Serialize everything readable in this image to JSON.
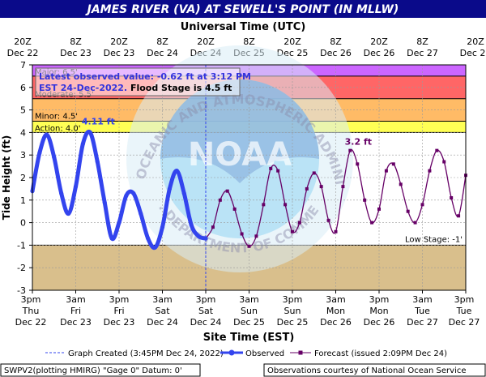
{
  "chart_data": {
    "type": "line",
    "title": "JAMES RIVER (VA) AT SEWELL'S POINT (IN MLLW)",
    "top_axis_label": "Universal Time (UTC)",
    "xlabel": "Site Time (EST)",
    "ylabel": "Tide Height (ft)",
    "ylim": [
      -3,
      7
    ],
    "y_ticks": [
      7,
      6,
      5,
      4,
      3,
      2,
      1,
      0,
      -1,
      -2,
      -3
    ],
    "x_range_hours": [
      0,
      120
    ],
    "x_tick_hours": [
      0,
      12,
      24,
      36,
      48,
      60,
      72,
      84,
      96,
      108,
      120
    ],
    "bottom_ticks": [
      {
        "time": "3pm",
        "day": "Thu",
        "date": "Dec 22"
      },
      {
        "time": "3am",
        "day": "Fri",
        "date": "Dec 23"
      },
      {
        "time": "3pm",
        "day": "Fri",
        "date": "Dec 23"
      },
      {
        "time": "3am",
        "day": "Sat",
        "date": "Dec 24"
      },
      {
        "time": "3pm",
        "day": "Sat",
        "date": "Dec 24"
      },
      {
        "time": "3am",
        "day": "Sun",
        "date": "Dec 25"
      },
      {
        "time": "3pm",
        "day": "Sun",
        "date": "Dec 25"
      },
      {
        "time": "3am",
        "day": "Mon",
        "date": "Dec 26"
      },
      {
        "time": "3pm",
        "day": "Mon",
        "date": "Dec 26"
      },
      {
        "time": "3am",
        "day": "Tue",
        "date": "Dec 27"
      },
      {
        "time": "3pm",
        "day": "Tue",
        "date": "Dec 27"
      }
    ],
    "top_ticks": [
      {
        "time": "20Z",
        "date": "Dec 22"
      },
      {
        "time": "8Z",
        "date": "Dec 23"
      },
      {
        "time": "20Z",
        "date": "Dec 23"
      },
      {
        "time": "8Z",
        "date": "Dec 24"
      },
      {
        "time": "20Z",
        "date": "Dec 24"
      },
      {
        "time": "8Z",
        "date": "Dec 25"
      },
      {
        "time": "20Z",
        "date": "Dec 25"
      },
      {
        "time": "8Z",
        "date": "Dec 26"
      },
      {
        "time": "20Z",
        "date": "Dec 26"
      },
      {
        "time": "8Z",
        "date": "Dec 27"
      },
      {
        "time": "20Z",
        "date": "Dec 27"
      }
    ],
    "flood_categories": [
      {
        "name": "Major",
        "label": "Major: 6.5'",
        "min": 6.5,
        "max": 7,
        "color": "#cc66ff"
      },
      {
        "name": "Moderate",
        "label": "Moderate: 5.5'",
        "min": 5.5,
        "max": 6.5,
        "color": "#ff6666"
      },
      {
        "name": "Flood",
        "label": "",
        "min": 4.5,
        "max": 5.5,
        "color": "#ffbb66"
      },
      {
        "name": "Minor",
        "label": "Minor: 4.5'",
        "min": 4.0,
        "max": 4.5,
        "color": "#ffff55"
      },
      {
        "name": "Action",
        "label": "Action: 4.0'",
        "min": 4.0,
        "max": 4.0,
        "color": "#ffff55"
      },
      {
        "name": "Low",
        "label": "Low Stage: -1'",
        "min": -3,
        "max": -1,
        "color": "#d9bf8c"
      }
    ],
    "observed": {
      "name": "Observed",
      "color": "#3344ee",
      "x_hours": [
        0,
        2,
        4,
        6,
        8,
        10,
        12,
        14,
        16,
        18,
        20,
        22,
        24,
        26,
        28,
        30,
        32,
        34,
        36,
        38,
        40,
        42,
        44,
        46,
        48
      ],
      "values": [
        1.4,
        3.1,
        3.9,
        2.9,
        1.3,
        0.4,
        1.6,
        3.5,
        4.0,
        2.7,
        0.9,
        -0.7,
        0.0,
        1.2,
        1.3,
        0.4,
        -0.7,
        -1.1,
        -0.2,
        1.5,
        2.3,
        1.3,
        -0.1,
        -0.6,
        -0.7
      ]
    },
    "forecast": {
      "name": "Forecast (issued 2:09PM Dec 24)",
      "color": "#660066",
      "x_hours": [
        48,
        50,
        52,
        54,
        56,
        58,
        60,
        62,
        64,
        66,
        68,
        70,
        72,
        74,
        76,
        78,
        80,
        82,
        84,
        86,
        88,
        90,
        92,
        94,
        96,
        98,
        100,
        102,
        104,
        106,
        108,
        110,
        112,
        114,
        116,
        118,
        120
      ],
      "values": [
        -0.7,
        -0.2,
        1.0,
        1.4,
        0.6,
        -0.5,
        -1.05,
        -0.6,
        0.8,
        2.4,
        2.3,
        0.8,
        -0.4,
        0.0,
        1.5,
        2.2,
        1.6,
        0.1,
        -0.4,
        1.6,
        3.2,
        2.6,
        1.0,
        0.0,
        0.6,
        2.3,
        2.6,
        1.7,
        0.5,
        0.0,
        0.8,
        2.3,
        3.2,
        2.7,
        1.1,
        0.3,
        2.1
      ]
    },
    "annotations": [
      {
        "text": "4.11 ft",
        "color": "#3344ee",
        "x_hours": 16,
        "y": 4.11
      },
      {
        "text": "3.2 ft",
        "color": "#660066",
        "x_hours": 88,
        "y": 3.2
      }
    ],
    "info_box": {
      "line1": "Latest observed value: -0.62  ft at 3:12 PM",
      "line2a": "EST 24-Dec-2022.",
      "line2b": " Flood Stage is 4.5 ft"
    },
    "graph_created_x_hours": 48,
    "grid": true,
    "legend": {
      "created": "Graph Created (3:45PM Dec 24, 2022)",
      "observed": "Observed",
      "forecast": "Forecast (issued 2:09PM Dec 24)"
    },
    "footer_left": "SWPV2(plotting HMIRG) \"Gage 0\" Datum: 0'",
    "footer_right": "Observations courtesy of National Ocean Service",
    "watermark": {
      "agency": "NATIONAL OCEANIC AND ATMOSPHERIC ADMINISTRATION",
      "dept": "U.S. DEPARTMENT OF COMMERCE",
      "logo": "NOAA"
    }
  }
}
